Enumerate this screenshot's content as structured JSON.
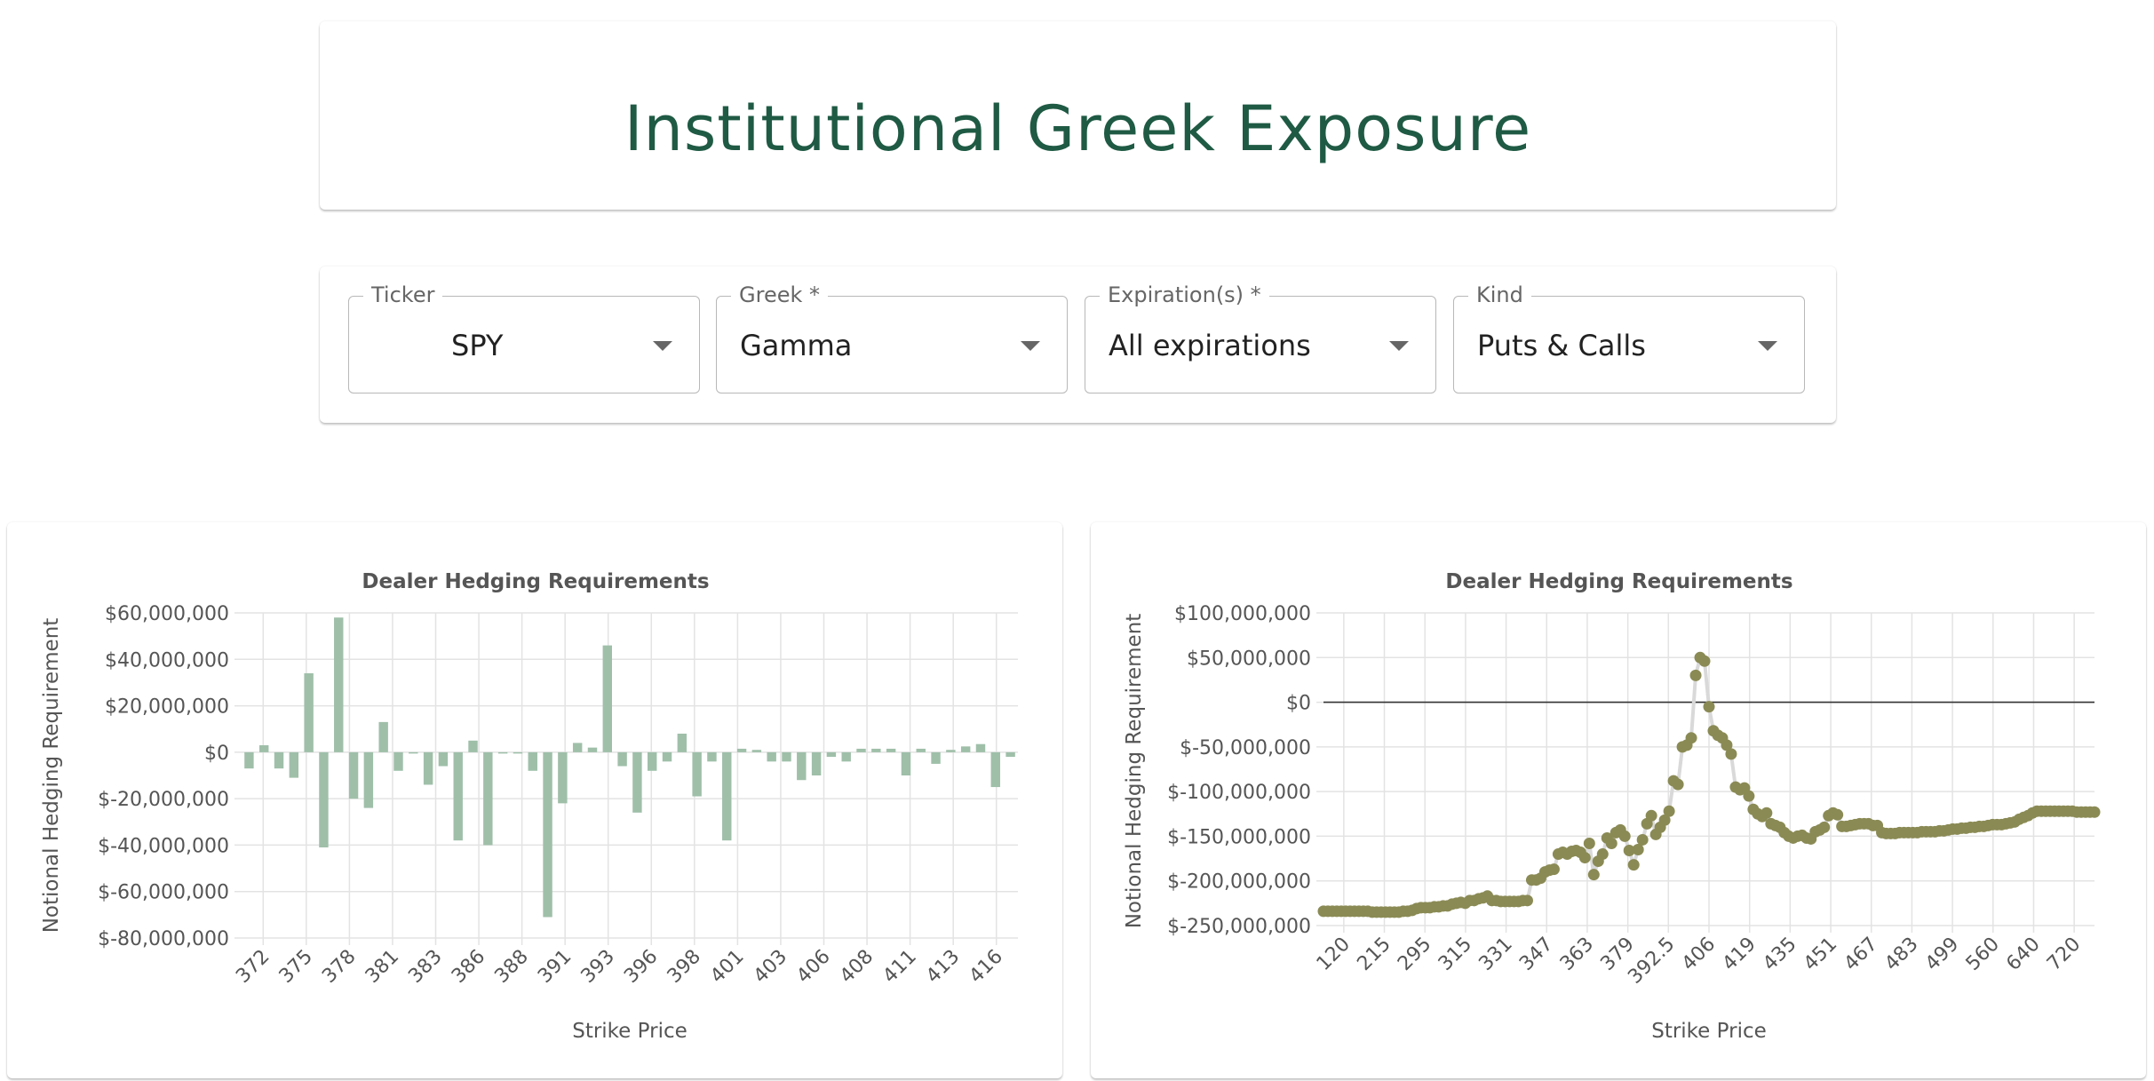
{
  "title": "Institutional Greek Exposure",
  "controls": {
    "ticker": {
      "label": "Ticker",
      "value": "SPY"
    },
    "greek": {
      "label": "Greek *",
      "value": "Gamma"
    },
    "expiration": {
      "label": "Expiration(s) *",
      "value": "All expirations"
    },
    "kind": {
      "label": "Kind",
      "value": "Puts & Calls"
    }
  },
  "colors": {
    "title": "#1f5a44",
    "bar": "#9fbfa9",
    "point": "#8a8a55",
    "line": "#d9d9d9"
  },
  "chart_data": [
    {
      "type": "bar",
      "title": "Dealer Hedging Requirements",
      "xlabel": "Strike Price",
      "ylabel": "Notional Hedging Requirement",
      "ylim": [
        -80000000,
        60000000
      ],
      "yticks": [
        60000000,
        40000000,
        20000000,
        0,
        -20000000,
        -40000000,
        -60000000,
        -80000000
      ],
      "ytick_labels": [
        "$60,000,000",
        "$40,000,000",
        "$20,000,000",
        "$0",
        "$-20,000,000",
        "$-40,000,000",
        "$-60,000,000",
        "$-80,000,000"
      ],
      "xtick_labels": [
        "372",
        "375",
        "378",
        "381",
        "383",
        "386",
        "388",
        "391",
        "393",
        "396",
        "398",
        "401",
        "403",
        "406",
        "408",
        "411",
        "413",
        "416"
      ],
      "grid": true,
      "values": [
        -7000000,
        3000000,
        -7000000,
        -11000000,
        34000000,
        -41000000,
        58000000,
        -20000000,
        -24000000,
        13000000,
        -8000000,
        0,
        -14000000,
        -6000000,
        -38000000,
        5000000,
        -40000000,
        0,
        0,
        -8000000,
        -71000000,
        -22000000,
        4000000,
        2000000,
        46000000,
        -6000000,
        -26000000,
        -8000000,
        -4000000,
        8000000,
        -19000000,
        -4000000,
        -38000000,
        1500000,
        1000000,
        -4000000,
        -4000000,
        -12000000,
        -10000000,
        -2000000,
        -4000000,
        1500000,
        1500000,
        1500000,
        -10000000,
        1500000,
        -5000000,
        1000000,
        2500000,
        3500000,
        -15000000,
        -2000000
      ]
    },
    {
      "type": "scatter",
      "title": "Dealer Hedging Requirements",
      "xlabel": "Strike Price",
      "ylabel": "Notional Hedging Requirement",
      "ylim": [
        -250000000,
        100000000
      ],
      "yticks": [
        100000000,
        50000000,
        0,
        -50000000,
        -100000000,
        -150000000,
        -200000000,
        -250000000
      ],
      "ytick_labels": [
        "$100,000,000",
        "$50,000,000",
        "$0",
        "$-50,000,000",
        "$-100,000,000",
        "$-150,000,000",
        "$-200,000,000",
        "$-250,000,000"
      ],
      "xtick_labels": [
        "120",
        "215",
        "295",
        "315",
        "331",
        "347",
        "363",
        "379",
        "392.5",
        "406",
        "419",
        "435",
        "451",
        "467",
        "483",
        "499",
        "560",
        "640",
        "720"
      ],
      "grid": true,
      "values": [
        -234000000,
        -234000000,
        -234000000,
        -234000000,
        -234000000,
        -234000000,
        -234000000,
        -234000000,
        -234000000,
        -234000000,
        -234000000,
        -235000000,
        -235000000,
        -235000000,
        -235000000,
        -235000000,
        -235000000,
        -235000000,
        -234000000,
        -234000000,
        -233000000,
        -231000000,
        -230000000,
        -230000000,
        -230000000,
        -229000000,
        -229000000,
        -228000000,
        -228000000,
        -226000000,
        -225000000,
        -224000000,
        -225000000,
        -222000000,
        -222000000,
        -220000000,
        -219000000,
        -217000000,
        -222000000,
        -222000000,
        -223000000,
        -223000000,
        -223000000,
        -223000000,
        -223000000,
        -222000000,
        -222000000,
        -199000000,
        -199000000,
        -197000000,
        -190000000,
        -188000000,
        -187000000,
        -170000000,
        -168000000,
        -170000000,
        -167000000,
        -166000000,
        -168000000,
        -174000000,
        -158000000,
        -193000000,
        -178000000,
        -170000000,
        -152000000,
        -158000000,
        -146000000,
        -143000000,
        -150000000,
        -166000000,
        -182000000,
        -165000000,
        -154000000,
        -136000000,
        -127000000,
        -148000000,
        -140000000,
        -132000000,
        -122000000,
        -88000000,
        -92000000,
        -50000000,
        -48000000,
        -40000000,
        30000000,
        50000000,
        46000000,
        -5000000,
        -32000000,
        -37000000,
        -40000000,
        -48000000,
        -58000000,
        -95000000,
        -98000000,
        -96000000,
        -105000000,
        -120000000,
        -125000000,
        -128000000,
        -124000000,
        -136000000,
        -138000000,
        -140000000,
        -146000000,
        -150000000,
        -152000000,
        -150000000,
        -149000000,
        -152000000,
        -153000000,
        -145000000,
        -143000000,
        -140000000,
        -127000000,
        -124000000,
        -126000000,
        -139000000,
        -139000000,
        -138000000,
        -137000000,
        -136000000,
        -136000000,
        -136000000,
        -138000000,
        -138000000,
        -146000000,
        -147000000,
        -147000000,
        -147000000,
        -146000000,
        -146000000,
        -146000000,
        -146000000,
        -146000000,
        -145000000,
        -145000000,
        -145000000,
        -145000000,
        -144000000,
        -144000000,
        -143000000,
        -142000000,
        -142000000,
        -141000000,
        -141000000,
        -140000000,
        -140000000,
        -139000000,
        -139000000,
        -138000000,
        -137000000,
        -137000000,
        -137000000,
        -136000000,
        -135000000,
        -134000000,
        -131000000,
        -129000000,
        -127000000,
        -124000000,
        -122000000,
        -122000000,
        -122000000,
        -122000000,
        -122000000,
        -122000000,
        -122000000,
        -122000000,
        -122000000,
        -123000000,
        -123000000,
        -123000000,
        -123000000,
        -123000000
      ]
    }
  ]
}
